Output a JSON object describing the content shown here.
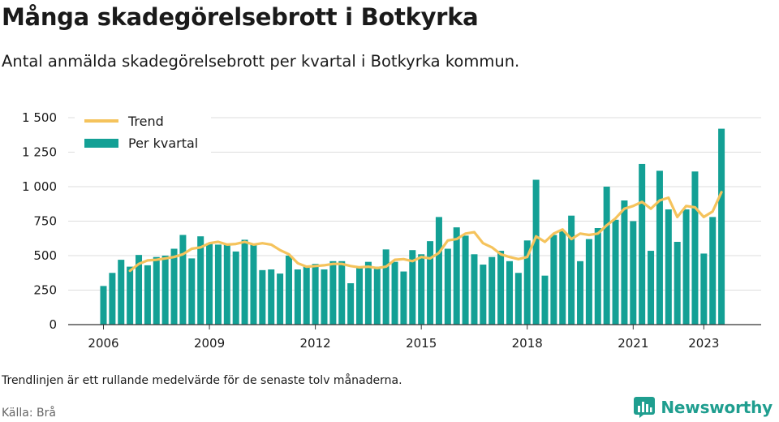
{
  "header": {
    "title": "Många skadegörelsebrott i Botkyrka",
    "subtitle": "Antal anmälda skadegörelsebrott per kvartal i Botkyrka kommun."
  },
  "footer": {
    "note": "Trendlinjen är ett rullande medelvärde för de senaste tolv månaderna.",
    "source": "Källa: Brå",
    "brand": "Newsworthy"
  },
  "colors": {
    "bars": "#13a095",
    "trend": "#f5c35c",
    "grid": "#dddddd",
    "brand": "#1f9e8f"
  },
  "chart_data": {
    "type": "bar",
    "x_labels": [
      "2006",
      "2009",
      "2012",
      "2015",
      "2018",
      "2021",
      "2023"
    ],
    "y_ticks": [
      "0",
      "250",
      "500",
      "750",
      "1 000",
      "1 250",
      "1 500"
    ],
    "ylim": [
      0,
      1500
    ],
    "grid": true,
    "legend_position": "top-left",
    "series": [
      {
        "name": "Per kvartal",
        "kind": "bar",
        "x": [
          "2006 Q1",
          "2006 Q2",
          "2006 Q3",
          "2006 Q4",
          "2007 Q1",
          "2007 Q2",
          "2007 Q3",
          "2007 Q4",
          "2008 Q1",
          "2008 Q2",
          "2008 Q3",
          "2008 Q4",
          "2009 Q1",
          "2009 Q2",
          "2009 Q3",
          "2009 Q4",
          "2010 Q1",
          "2010 Q2",
          "2010 Q3",
          "2010 Q4",
          "2011 Q1",
          "2011 Q2",
          "2011 Q3",
          "2011 Q4",
          "2012 Q1",
          "2012 Q2",
          "2012 Q3",
          "2012 Q4",
          "2013 Q1",
          "2013 Q2",
          "2013 Q3",
          "2013 Q4",
          "2014 Q1",
          "2014 Q2",
          "2014 Q3",
          "2014 Q4",
          "2015 Q1",
          "2015 Q2",
          "2015 Q3",
          "2015 Q4",
          "2016 Q1",
          "2016 Q2",
          "2016 Q3",
          "2016 Q4",
          "2017 Q1",
          "2017 Q2",
          "2017 Q3",
          "2017 Q4",
          "2018 Q1",
          "2018 Q2",
          "2018 Q3",
          "2018 Q4",
          "2019 Q1",
          "2019 Q2",
          "2019 Q3",
          "2019 Q4",
          "2020 Q1",
          "2020 Q2",
          "2020 Q3",
          "2020 Q4",
          "2021 Q1",
          "2021 Q2",
          "2021 Q3",
          "2021 Q4",
          "2022 Q1",
          "2022 Q2",
          "2022 Q3",
          "2022 Q4",
          "2023 Q1",
          "2023 Q2",
          "2023 Q3",
          "2023 Q4"
        ],
        "values": [
          280,
          375,
          470,
          420,
          505,
          430,
          490,
          500,
          550,
          650,
          480,
          640,
          590,
          580,
          585,
          530,
          615,
          580,
          395,
          400,
          370,
          500,
          400,
          420,
          440,
          400,
          460,
          460,
          300,
          415,
          455,
          420,
          545,
          455,
          385,
          540,
          510,
          605,
          780,
          550,
          705,
          645,
          510,
          435,
          490,
          535,
          460,
          375,
          610,
          1050,
          355,
          650,
          680,
          790,
          460,
          620,
          700,
          1000,
          760,
          900,
          750,
          1165,
          535,
          1115,
          835,
          600,
          835,
          1110,
          515,
          780,
          1420,
          0
        ]
      },
      {
        "name": "Trend",
        "kind": "line",
        "x": [
          "2006 Q4",
          "2007 Q1",
          "2007 Q2",
          "2007 Q3",
          "2007 Q4",
          "2008 Q1",
          "2008 Q2",
          "2008 Q3",
          "2008 Q4",
          "2009 Q1",
          "2009 Q2",
          "2009 Q3",
          "2009 Q4",
          "2010 Q1",
          "2010 Q2",
          "2010 Q3",
          "2010 Q4",
          "2011 Q1",
          "2011 Q2",
          "2011 Q3",
          "2011 Q4",
          "2012 Q1",
          "2012 Q2",
          "2012 Q3",
          "2012 Q4",
          "2013 Q1",
          "2013 Q2",
          "2013 Q3",
          "2013 Q4",
          "2014 Q1",
          "2014 Q2",
          "2014 Q3",
          "2014 Q4",
          "2015 Q1",
          "2015 Q2",
          "2015 Q3",
          "2015 Q4",
          "2016 Q1",
          "2016 Q2",
          "2016 Q3",
          "2016 Q4",
          "2017 Q1",
          "2017 Q2",
          "2017 Q3",
          "2017 Q4",
          "2018 Q1",
          "2018 Q2",
          "2018 Q3",
          "2018 Q4",
          "2019 Q1",
          "2019 Q2",
          "2019 Q3",
          "2019 Q4",
          "2020 Q1",
          "2020 Q2",
          "2020 Q3",
          "2020 Q4",
          "2021 Q1",
          "2021 Q2",
          "2021 Q3",
          "2021 Q4",
          "2022 Q1",
          "2022 Q2",
          "2022 Q3",
          "2022 Q4",
          "2023 Q1",
          "2023 Q2",
          "2023 Q3"
        ],
        "values": [
          390,
          440,
          465,
          470,
          480,
          490,
          510,
          550,
          560,
          590,
          600,
          580,
          585,
          600,
          580,
          590,
          580,
          540,
          510,
          445,
          420,
          425,
          430,
          440,
          440,
          425,
          415,
          420,
          410,
          420,
          470,
          475,
          460,
          490,
          480,
          520,
          610,
          620,
          660,
          670,
          590,
          560,
          510,
          490,
          475,
          490,
          640,
          600,
          660,
          690,
          620,
          660,
          650,
          660,
          720,
          770,
          840,
          860,
          890,
          840,
          900,
          920,
          780,
          860,
          850,
          780,
          820,
          960
        ]
      }
    ]
  }
}
